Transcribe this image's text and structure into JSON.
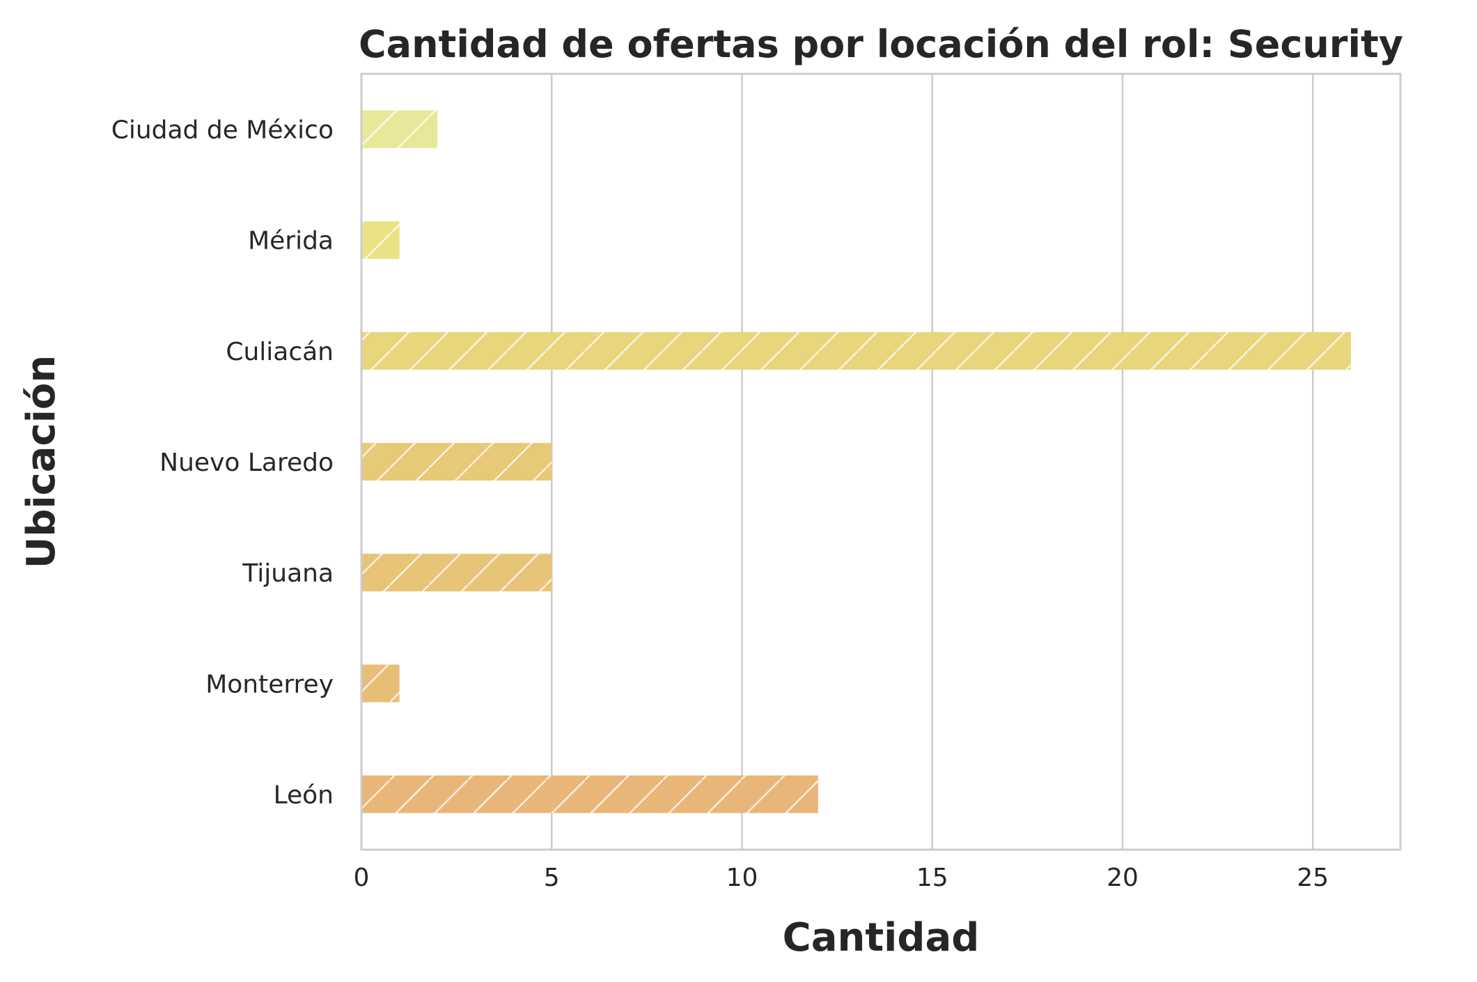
{
  "chart_data": {
    "type": "bar",
    "orientation": "horizontal",
    "title": "Cantidad de ofertas por locación del rol: Security",
    "xlabel": "Cantidad",
    "ylabel": "Ubicación",
    "categories": [
      "Ciudad de México",
      "Mérida",
      "Culiacán",
      "Nuevo Laredo",
      "Tijuana",
      "Monterrey",
      "León"
    ],
    "values": [
      2,
      1,
      26,
      5,
      5,
      1,
      12
    ],
    "colors": [
      "#e8e89a",
      "#ebe286",
      "#e9d57c",
      "#e8c978",
      "#e8c478",
      "#e8bd78",
      "#e8b678"
    ],
    "xlim": [
      0,
      27.3
    ],
    "xticks": [
      0,
      5,
      10,
      15,
      20,
      25
    ],
    "grid": "x",
    "hatch": "diagonal",
    "legend": "none"
  }
}
